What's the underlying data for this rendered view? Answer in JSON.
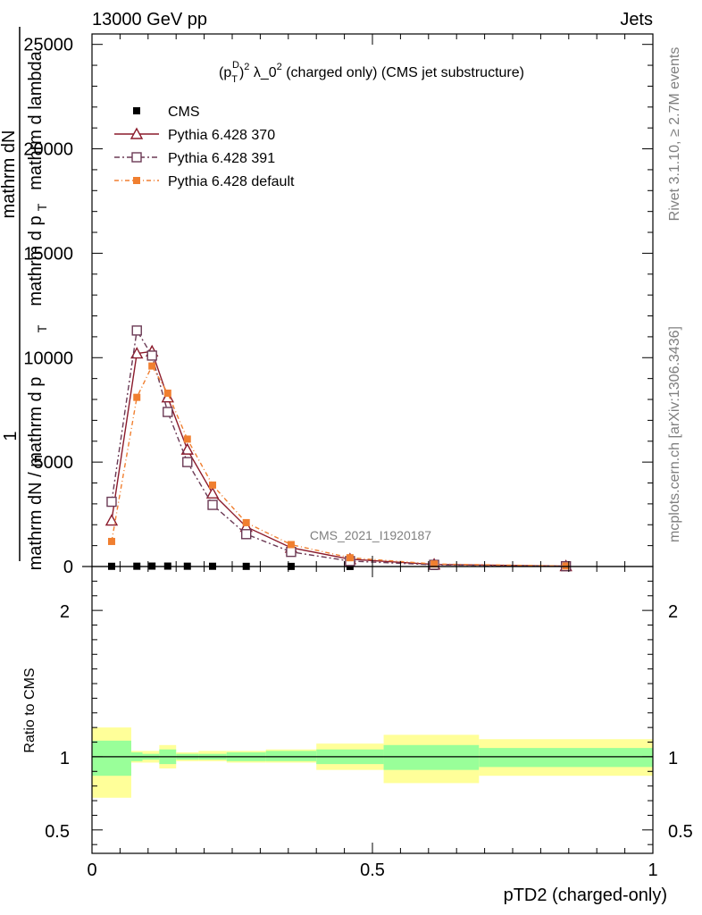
{
  "header": {
    "energy_label": "13000 GeV pp",
    "category_label": "Jets"
  },
  "side_labels": {
    "rivet": "Rivet 3.1.10, ≥ 2.7M events",
    "mcplots": "mcplots.cern.ch [arXiv:1306.3436]"
  },
  "watermark": "CMS_2021_I1920187",
  "chart_data": [
    {
      "type": "line",
      "title": "(pTD)2 λ_02 (charged only) (CMS jet substructure)",
      "title_parts": {
        "p": "(p",
        "sub_T": "T",
        "sup_D": "D",
        "close": ")",
        "sup_2a": "2",
        "lambda": " λ_0",
        "sup_2b": "2",
        "rest": " (charged only) (CMS jet substructure)"
      },
      "ylabel_lines": [
        "1",
        "mathrm dN / mathrm d p",
        "T",
        "mathrm dN",
        "mathrm d p",
        "T",
        "mathrm d lambda"
      ],
      "xlim": [
        0,
        1
      ],
      "ylim": [
        0,
        25500
      ],
      "y_ticks": [
        0,
        5000,
        10000,
        15000,
        20000,
        25000
      ],
      "y_tick_labels": [
        "0",
        "5000",
        "10000",
        "15000",
        "20000",
        "25000"
      ],
      "legend": [
        "CMS",
        "Pythia 6.428 370",
        "Pythia 6.428 391",
        "Pythia 6.428 default"
      ],
      "series": [
        {
          "name": "CMS",
          "color": "#000000",
          "marker": "square-filled",
          "x": [
            0.035,
            0.08,
            0.107,
            0.135,
            0.17,
            0.215,
            0.275,
            0.355,
            0.46,
            0.61,
            0.845
          ],
          "values": [
            10,
            15,
            20,
            20,
            15,
            12,
            8,
            5,
            3,
            1,
            0
          ]
        },
        {
          "name": "Pythia 6.428 370",
          "color": "#8b1a2b",
          "marker": "triangle-open",
          "x": [
            0.035,
            0.08,
            0.107,
            0.135,
            0.17,
            0.215,
            0.275,
            0.355,
            0.46,
            0.61,
            0.845
          ],
          "values": [
            2200,
            10200,
            10300,
            8100,
            5600,
            3500,
            1900,
            900,
            350,
            100,
            20
          ]
        },
        {
          "name": "Pythia 6.428 391",
          "color": "#6b3a55",
          "marker": "square-open",
          "x": [
            0.035,
            0.08,
            0.107,
            0.135,
            0.17,
            0.215,
            0.275,
            0.355,
            0.46,
            0.61,
            0.845
          ],
          "values": [
            3100,
            11300,
            10100,
            7400,
            5000,
            2950,
            1550,
            700,
            260,
            80,
            15
          ]
        },
        {
          "name": "Pythia 6.428 default",
          "color": "#f07f30",
          "marker": "square-filled",
          "x": [
            0.035,
            0.08,
            0.107,
            0.135,
            0.17,
            0.215,
            0.275,
            0.355,
            0.46,
            0.61,
            0.845
          ],
          "values": [
            1200,
            8100,
            9600,
            8300,
            6100,
            3900,
            2100,
            1050,
            420,
            120,
            25
          ]
        }
      ]
    },
    {
      "type": "area",
      "ylabel": "Ratio to CMS",
      "xlabel": "pTD2 (charged-only)",
      "xlim": [
        0,
        1
      ],
      "ylim": [
        0.34,
        2.3
      ],
      "x_ticks": [
        0,
        0.5,
        1
      ],
      "x_tick_labels": [
        "0",
        "0.5",
        "1"
      ],
      "y_ticks": [
        0.5,
        1,
        2
      ],
      "y_tick_labels": [
        "0.5",
        "1",
        "2"
      ],
      "bin_edges": [
        0,
        0.07,
        0.09,
        0.12,
        0.15,
        0.19,
        0.24,
        0.31,
        0.4,
        0.52,
        0.69,
        1.0
      ],
      "inner_band": {
        "color": "#99ff99",
        "lower": [
          0.87,
          0.97,
          0.98,
          0.95,
          0.98,
          0.98,
          0.97,
          0.97,
          0.95,
          0.91,
          0.93
        ],
        "upper": [
          1.11,
          1.03,
          1.02,
          1.05,
          1.02,
          1.02,
          1.03,
          1.04,
          1.05,
          1.08,
          1.06
        ]
      },
      "outer_band": {
        "color": "#ffff99",
        "lower": [
          0.72,
          0.96,
          0.96,
          0.92,
          0.97,
          0.97,
          0.96,
          0.96,
          0.91,
          0.82,
          0.87
        ],
        "upper": [
          1.2,
          1.04,
          1.04,
          1.08,
          1.03,
          1.04,
          1.04,
          1.05,
          1.09,
          1.15,
          1.12
        ]
      },
      "reference": 1
    }
  ]
}
